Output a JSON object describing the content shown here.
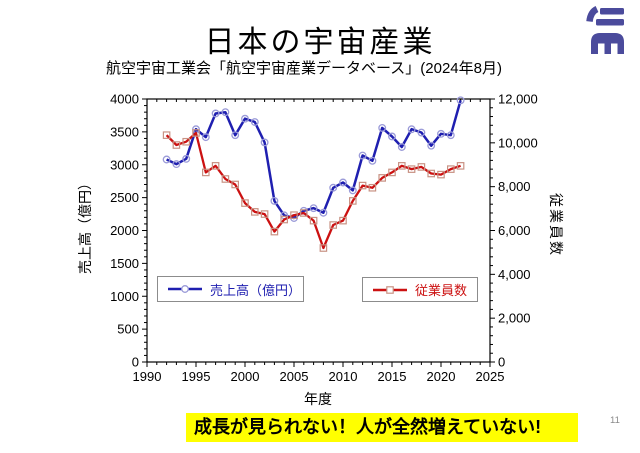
{
  "slide": {
    "title": "日本の宇宙産業",
    "subtitle": "航空宇宙工業会「航空宇宙産業データベース」(2024年8月)",
    "banner": "成長が見られない！人が全然増えていない!",
    "banner_bg": "#FFFF00",
    "page_number": "11",
    "logo_color": "#4B4B9C"
  },
  "chart_data": {
    "type": "line",
    "title": "",
    "xlabel": "年度",
    "ylabel_left": "売上高（億円）",
    "ylabel_right": "従業員数",
    "x_range": [
      1990,
      2025
    ],
    "ylim_left": [
      0,
      4000
    ],
    "ylim_right": [
      0,
      12000
    ],
    "grid": false,
    "legend_position": "inside-lower-left",
    "x_tick_labels": [
      "1990",
      "1995",
      "2000",
      "2005",
      "2010",
      "2015",
      "2020",
      "2025"
    ],
    "y_tick_labels_left": [
      "0",
      "500",
      "1000",
      "1500",
      "2000",
      "2500",
      "3000",
      "3500",
      "4000"
    ],
    "y_tick_labels_right": [
      "0",
      "2,000",
      "4,000",
      "6,000",
      "8,000",
      "10,000",
      "12,000"
    ],
    "x": [
      1992,
      1993,
      1994,
      1995,
      1996,
      1997,
      1998,
      1999,
      2000,
      2001,
      2002,
      2003,
      2004,
      2005,
      2006,
      2007,
      2008,
      2009,
      2010,
      2011,
      2012,
      2013,
      2014,
      2015,
      2016,
      2017,
      2018,
      2019,
      2020,
      2021,
      2022
    ],
    "series": [
      {
        "name": "売上高（億円）",
        "axis": "left",
        "color": "#1F1FB0",
        "marker": "circle",
        "marker_color": "#9A9AD8",
        "values": [
          3080,
          3010,
          3090,
          3540,
          3420,
          3780,
          3800,
          3450,
          3700,
          3650,
          3340,
          2450,
          2230,
          2190,
          2300,
          2340,
          2270,
          2650,
          2730,
          2610,
          3140,
          3060,
          3560,
          3430,
          3270,
          3540,
          3490,
          3290,
          3470,
          3450,
          3980
        ]
      },
      {
        "name": "従業員数",
        "axis": "right",
        "color": "#CC1111",
        "marker": "square",
        "marker_color": "#C89284",
        "values": [
          10350,
          9900,
          10050,
          10450,
          8650,
          8950,
          8350,
          8100,
          7250,
          6850,
          6750,
          5950,
          6500,
          6700,
          6800,
          6450,
          5200,
          6250,
          6450,
          7350,
          8050,
          7950,
          8400,
          8650,
          8950,
          8800,
          8900,
          8600,
          8550,
          8800,
          8950
        ]
      }
    ]
  }
}
